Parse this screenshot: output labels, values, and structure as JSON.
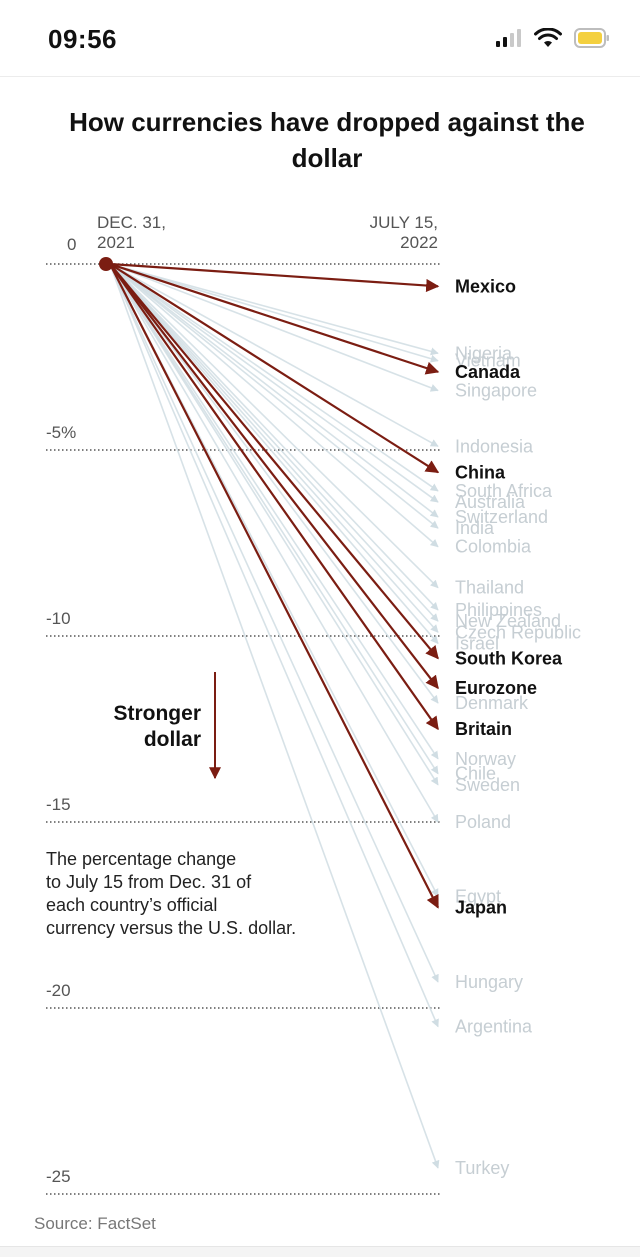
{
  "status_bar": {
    "time": "09:56",
    "icons": [
      "cellular-signal-icon",
      "wifi-icon",
      "battery-icon"
    ],
    "battery_color": "#f4d03f"
  },
  "chart_data": {
    "type": "line",
    "title": "How currencies have dropped against the dollar",
    "x_labels": [
      "DEC. 31, 2021",
      "JULY 15, 2022"
    ],
    "x_label_lines": {
      "start": [
        "DEC. 31,",
        "2021"
      ],
      "end": [
        "JULY 15,",
        "2022"
      ]
    },
    "y_unit": "%",
    "y_ticks": [
      {
        "value": 0,
        "label": "0"
      },
      {
        "value": -5,
        "label": "-5%"
      },
      {
        "value": -10,
        "label": "-10"
      },
      {
        "value": -15,
        "label": "-15"
      },
      {
        "value": -20,
        "label": "-20"
      },
      {
        "value": -25,
        "label": "-25"
      }
    ],
    "ylim": [
      -25,
      0
    ],
    "grid": true,
    "highlight_color": "#7b1d12",
    "muted_color": "#d0dde3",
    "series": [
      {
        "name": "Mexico",
        "change": -0.6,
        "highlight": true
      },
      {
        "name": "Nigeria",
        "change": -2.4,
        "highlight": false
      },
      {
        "name": "Vietnam",
        "change": -2.6,
        "highlight": false
      },
      {
        "name": "Canada",
        "change": -2.9,
        "highlight": true
      },
      {
        "name": "Singapore",
        "change": -3.4,
        "highlight": false
      },
      {
        "name": "Indonesia",
        "change": -4.9,
        "highlight": false
      },
      {
        "name": "China",
        "change": -5.6,
        "highlight": true
      },
      {
        "name": "South Africa",
        "change": -6.1,
        "highlight": false
      },
      {
        "name": "Australia",
        "change": -6.4,
        "highlight": false
      },
      {
        "name": "Switzerland",
        "change": -6.8,
        "highlight": false
      },
      {
        "name": "India",
        "change": -7.1,
        "highlight": false
      },
      {
        "name": "Colombia",
        "change": -7.6,
        "highlight": false
      },
      {
        "name": "Thailand",
        "change": -8.7,
        "highlight": false
      },
      {
        "name": "Philippines",
        "change": -9.3,
        "highlight": false
      },
      {
        "name": "New Zealand",
        "change": -9.6,
        "highlight": false
      },
      {
        "name": "Czech Republic",
        "change": -9.9,
        "highlight": false
      },
      {
        "name": "Israel",
        "change": -10.2,
        "highlight": false
      },
      {
        "name": "South Korea",
        "change": -10.6,
        "highlight": true
      },
      {
        "name": "Eurozone",
        "change": -11.4,
        "highlight": true
      },
      {
        "name": "Denmark",
        "change": -11.8,
        "highlight": false
      },
      {
        "name": "Britain",
        "change": -12.5,
        "highlight": true
      },
      {
        "name": "Norway",
        "change": -13.3,
        "highlight": false
      },
      {
        "name": "Chile",
        "change": -13.7,
        "highlight": false
      },
      {
        "name": "Sweden",
        "change": -14.0,
        "highlight": false
      },
      {
        "name": "Poland",
        "change": -15.0,
        "highlight": false
      },
      {
        "name": "Egypt",
        "change": -17.0,
        "highlight": false
      },
      {
        "name": "Japan",
        "change": -17.3,
        "highlight": true
      },
      {
        "name": "Hungary",
        "change": -19.3,
        "highlight": false
      },
      {
        "name": "Argentina",
        "change": -20.5,
        "highlight": false
      },
      {
        "name": "Turkey",
        "change": -24.3,
        "highlight": false
      }
    ],
    "annotation_arrow": {
      "lines": [
        "Stronger",
        "dollar"
      ]
    },
    "note_lines": [
      "The percentage change",
      "to July 15 from Dec. 31 of",
      "each country’s official",
      "currency versus the U.S. dollar."
    ],
    "source": "Source: FactSet"
  }
}
